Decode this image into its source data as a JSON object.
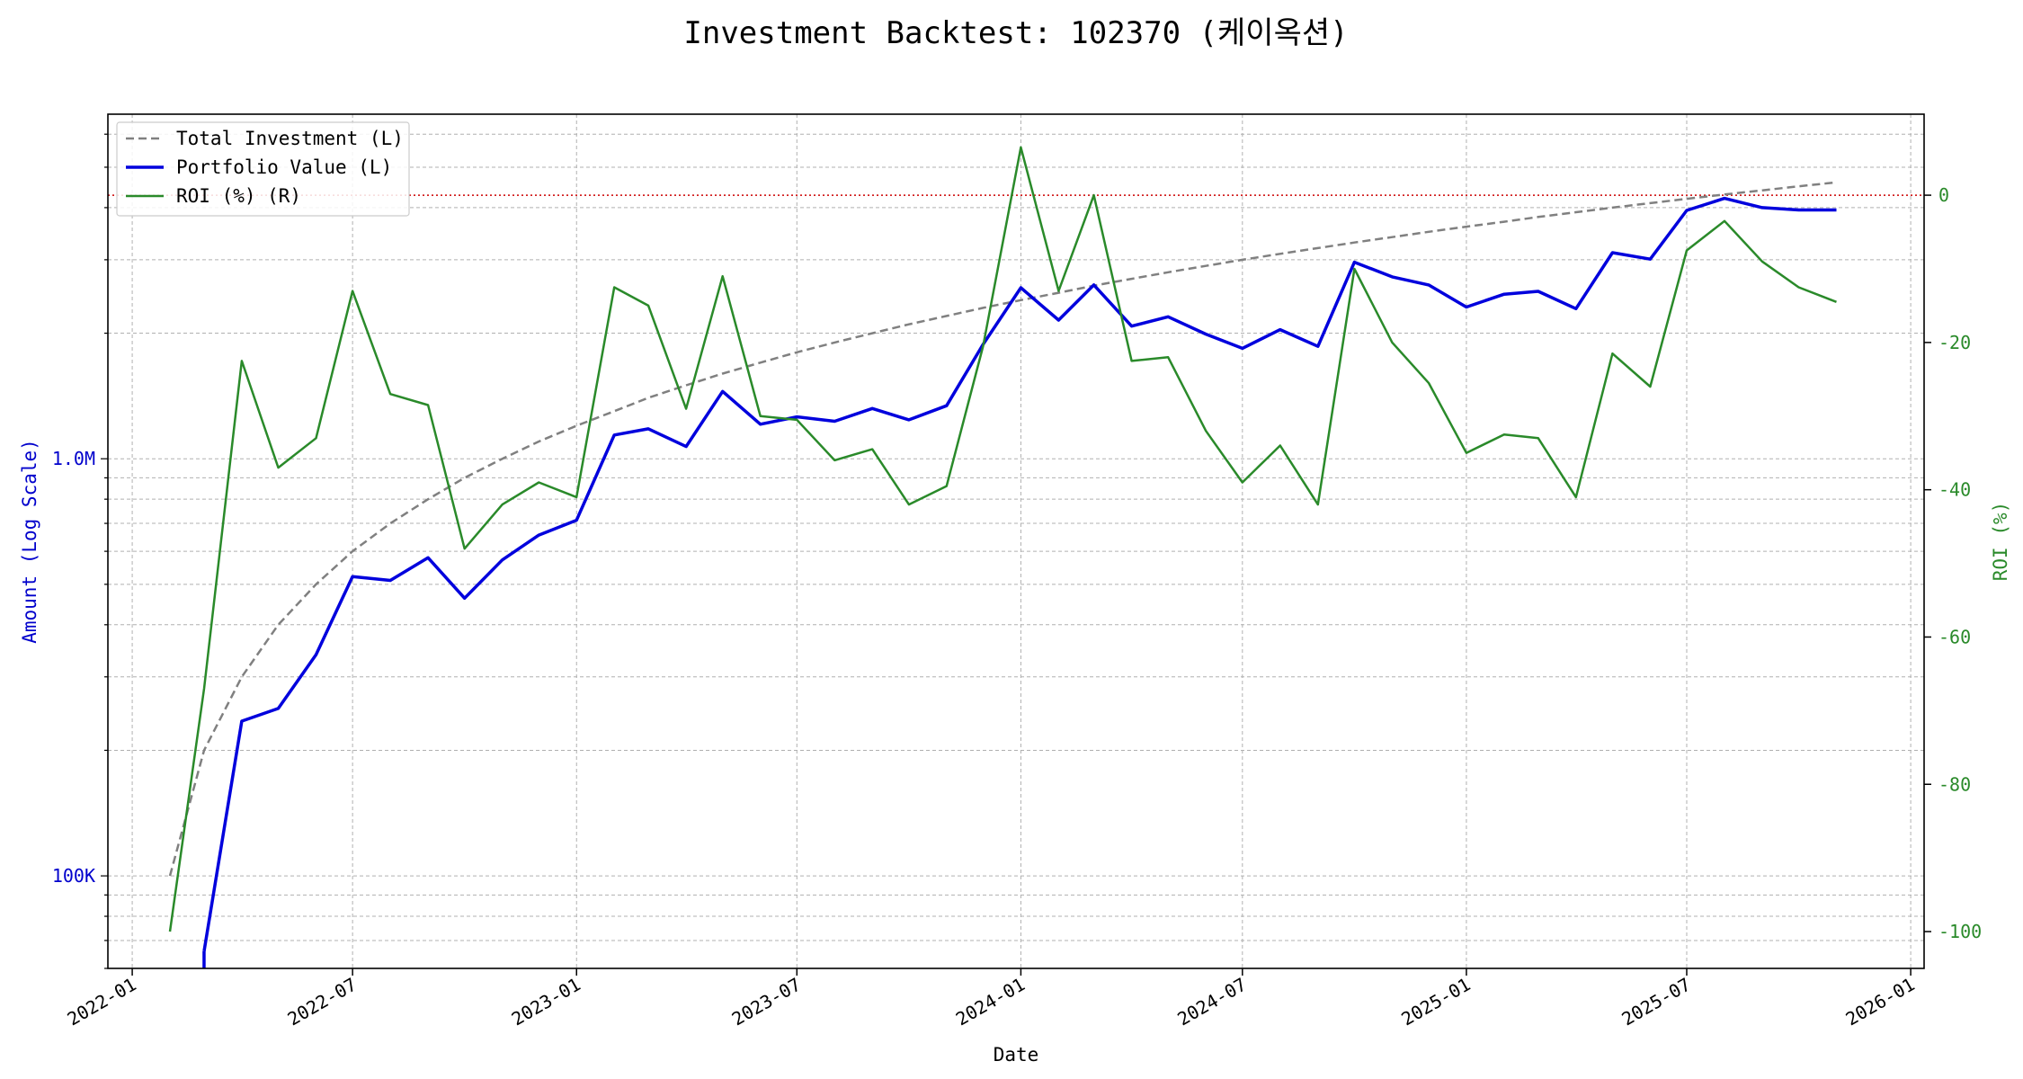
{
  "chart_data": {
    "type": "line",
    "title": "Investment Backtest: 102370 (케이옥션)",
    "xlabel": "Date",
    "ylabel_left": "Amount (Log Scale)",
    "ylabel_right": "ROI (%)",
    "left_scale": "log",
    "left_ylim": [
      60000,
      6700000
    ],
    "right_ylim": [
      -105,
      11
    ],
    "xlim": [
      "2021-12-12",
      "2026-01-12"
    ],
    "grid": true,
    "legend_position": "upper-left",
    "x_ticks": [
      "2022-01",
      "2022-07",
      "2023-01",
      "2023-07",
      "2024-01",
      "2024-07",
      "2025-01",
      "2025-07",
      "2026-01"
    ],
    "left_ticks": [
      {
        "value": 1000000,
        "label": "1.0M"
      },
      {
        "value": 100000,
        "label": "100K"
      }
    ],
    "right_ticks": [
      0,
      -20,
      -40,
      -60,
      -80,
      -100
    ],
    "reference_line": {
      "axis": "right",
      "value": 0,
      "color": "#cc0000"
    },
    "colors": {
      "total": "#808080",
      "portfolio": "#0000dd",
      "roi": "#2a8a2a",
      "left_axis": "#0000cc",
      "right_axis": "#2a8a2a"
    },
    "dates": [
      "2022-02",
      "2022-03",
      "2022-04",
      "2022-05",
      "2022-06",
      "2022-07",
      "2022-08",
      "2022-09",
      "2022-10",
      "2022-11",
      "2022-12",
      "2023-01",
      "2023-02",
      "2023-03",
      "2023-04",
      "2023-05",
      "2023-06",
      "2023-07",
      "2023-08",
      "2023-09",
      "2023-10",
      "2023-11",
      "2023-12",
      "2024-01",
      "2024-02",
      "2024-03",
      "2024-04",
      "2024-05",
      "2024-06",
      "2024-07",
      "2024-08",
      "2024-09",
      "2024-10",
      "2024-11",
      "2024-12",
      "2025-01",
      "2025-02",
      "2025-03",
      "2025-04",
      "2025-05",
      "2025-06",
      "2025-07",
      "2025-08",
      "2025-09",
      "2025-10",
      "2025-11"
    ],
    "series": [
      {
        "name": "Total Investment (L)",
        "axis": "left",
        "style": "dashed",
        "values": [
          100000,
          200000,
          300000,
          400000,
          500000,
          600000,
          700000,
          800000,
          900000,
          1000000,
          1100000,
          1200000,
          1300000,
          1400000,
          1500000,
          1600000,
          1700000,
          1800000,
          1900000,
          2000000,
          2100000,
          2200000,
          2300000,
          2400000,
          2500000,
          2600000,
          2700000,
          2800000,
          2900000,
          3000000,
          3100000,
          3200000,
          3300000,
          3400000,
          3500000,
          3600000,
          3700000,
          3800000,
          3900000,
          4000000,
          4100000,
          4200000,
          4300000,
          4400000,
          4500000,
          4600000
        ]
      },
      {
        "name": "Portfolio Value (L)",
        "axis": "left",
        "style": "solid",
        "values": [
          null,
          66000,
          235000,
          252000,
          339000,
          522000,
          511000,
          579000,
          463000,
          572000,
          656000,
          712000,
          1140000,
          1180000,
          1070000,
          1450000,
          1210000,
          1260000,
          1230000,
          1320000,
          1240000,
          1340000,
          1880000,
          2570000,
          2150000,
          2610000,
          2080000,
          2190000,
          1990000,
          1840000,
          2040000,
          1860000,
          2960000,
          2730000,
          2610000,
          2310000,
          2480000,
          2520000,
          2290000,
          3120000,
          3010000,
          3940000,
          4210000,
          4000000,
          3950000,
          3950000
        ]
      },
      {
        "name": "ROI (%) (R)",
        "axis": "right",
        "style": "solid",
        "values": [
          -100,
          -67,
          -22.5,
          -37,
          -33,
          -13,
          -27,
          -28.5,
          -48,
          -42,
          -39,
          -41,
          -12.5,
          -15,
          -29,
          -11,
          -30,
          -30.5,
          -36,
          -34.5,
          -42,
          -39.5,
          -20.5,
          6.5,
          -13,
          0,
          -22.5,
          -22,
          -32,
          -39,
          -34,
          -42,
          -10,
          -20,
          -25.5,
          -35,
          -32.5,
          -33,
          -41,
          -21.5,
          -26,
          -7.5,
          -3.5,
          -9,
          -12.5,
          -14.5
        ]
      }
    ]
  }
}
